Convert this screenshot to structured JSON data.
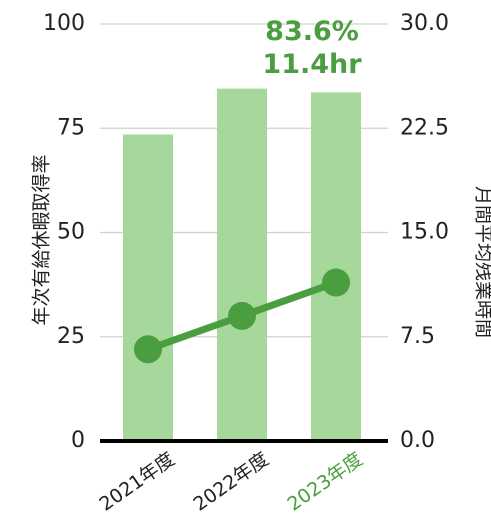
{
  "chart_data": {
    "type": "bar",
    "categories": [
      "2021年度",
      "2022年度",
      "2023年度"
    ],
    "series": [
      {
        "name": "年次有給休暇取得率",
        "kind": "bar",
        "axis": "left",
        "values": [
          73.5,
          84.5,
          83.6
        ]
      },
      {
        "name": "月間平均残業時間",
        "kind": "line",
        "axis": "right",
        "values": [
          6.6,
          9.0,
          11.4
        ]
      }
    ],
    "ylabel": "年次有給休暇取得率",
    "y2label": "月間平均残業時間",
    "ylim": [
      0,
      100
    ],
    "y2lim": [
      0,
      30
    ],
    "yticks": [
      "0",
      "25",
      "50",
      "75",
      "100"
    ],
    "y2ticks": [
      "0.0",
      "7.5",
      "15.0",
      "22.5",
      "30.0"
    ],
    "callout": {
      "line1": "83.6%",
      "line2": "11.4hr"
    },
    "highlight_category": "2023年度",
    "grid": true,
    "colors": {
      "bar": "#a6d89b",
      "line": "#4a9e3f",
      "highlight_text": "#4a9e3f",
      "grid": "#d0d0d0",
      "baseline": "#000000",
      "text": "#222222"
    }
  }
}
